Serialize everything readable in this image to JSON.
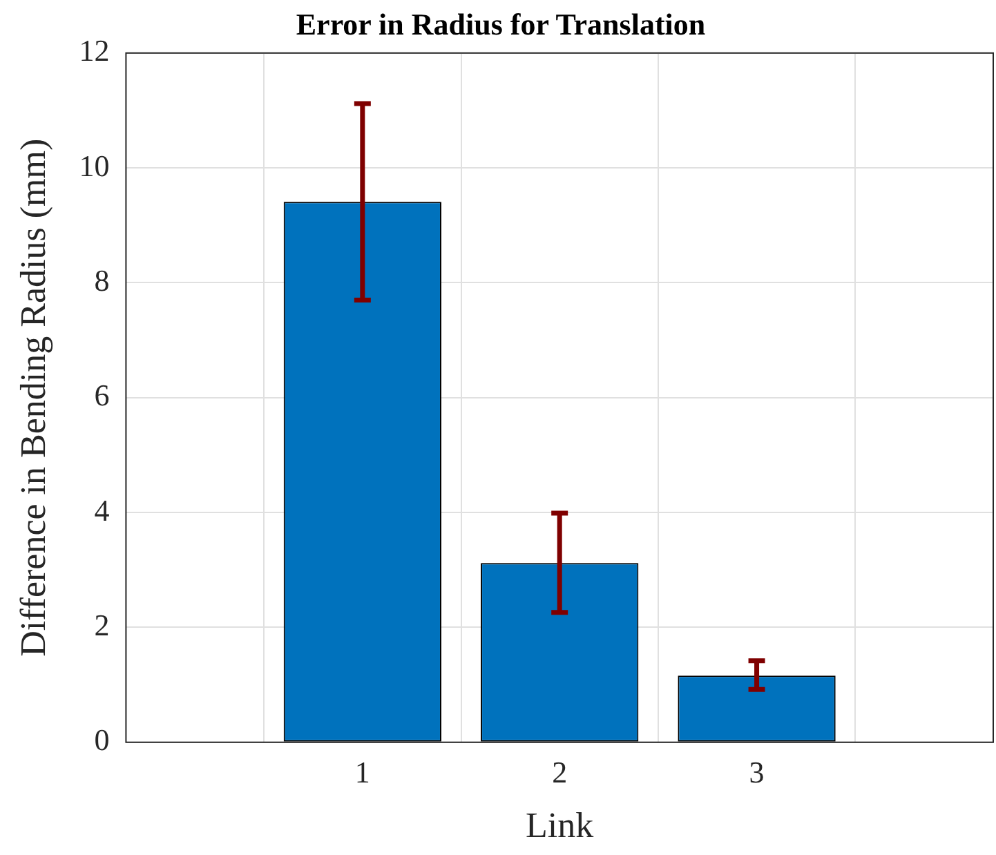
{
  "chart_data": {
    "type": "bar",
    "title": "Error in Radius for Translation",
    "xlabel": "Link",
    "ylabel": "Difference in Bending Radius (mm)",
    "categories": [
      "1",
      "2",
      "3"
    ],
    "values": [
      9.41,
      3.12,
      1.16
    ],
    "color": "#0072bd",
    "errors": [
      [
        7.7,
        11.12
      ],
      [
        2.26,
        3.99
      ],
      [
        0.92,
        1.42
      ]
    ],
    "ylim": [
      0,
      12
    ],
    "yticks": [
      0,
      2,
      4,
      6,
      8,
      10,
      12
    ],
    "grid": true,
    "legend": false
  }
}
